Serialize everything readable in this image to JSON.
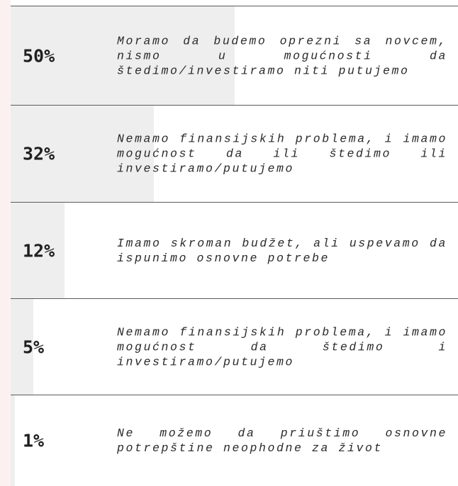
{
  "chart_data": {
    "type": "bar",
    "orientation": "horizontal",
    "categories": [
      "Moramo da budemo oprezni sa novcem, nismo u mogućnosti da štedimo/investiramo niti putujemo",
      "Nemamo finansijskih problema, i imamo mogućnost da ili štedimo ili investiramo/putujemo",
      "Imamo skroman budžet, ali uspevamo da ispunimo osnovne potrebe",
      "Nemamo finansijskih problema, i imamo mogućnost da štedimo i investiramo/putujemo",
      "Ne možemo da priuštimo osnovne potrepštine neophodne za život"
    ],
    "values": [
      50,
      32,
      12,
      5,
      1
    ],
    "value_labels": [
      "50%",
      "32%",
      "12%",
      "5%",
      "1%"
    ],
    "color": "#efeeee",
    "xlim": [
      0,
      100
    ]
  }
}
